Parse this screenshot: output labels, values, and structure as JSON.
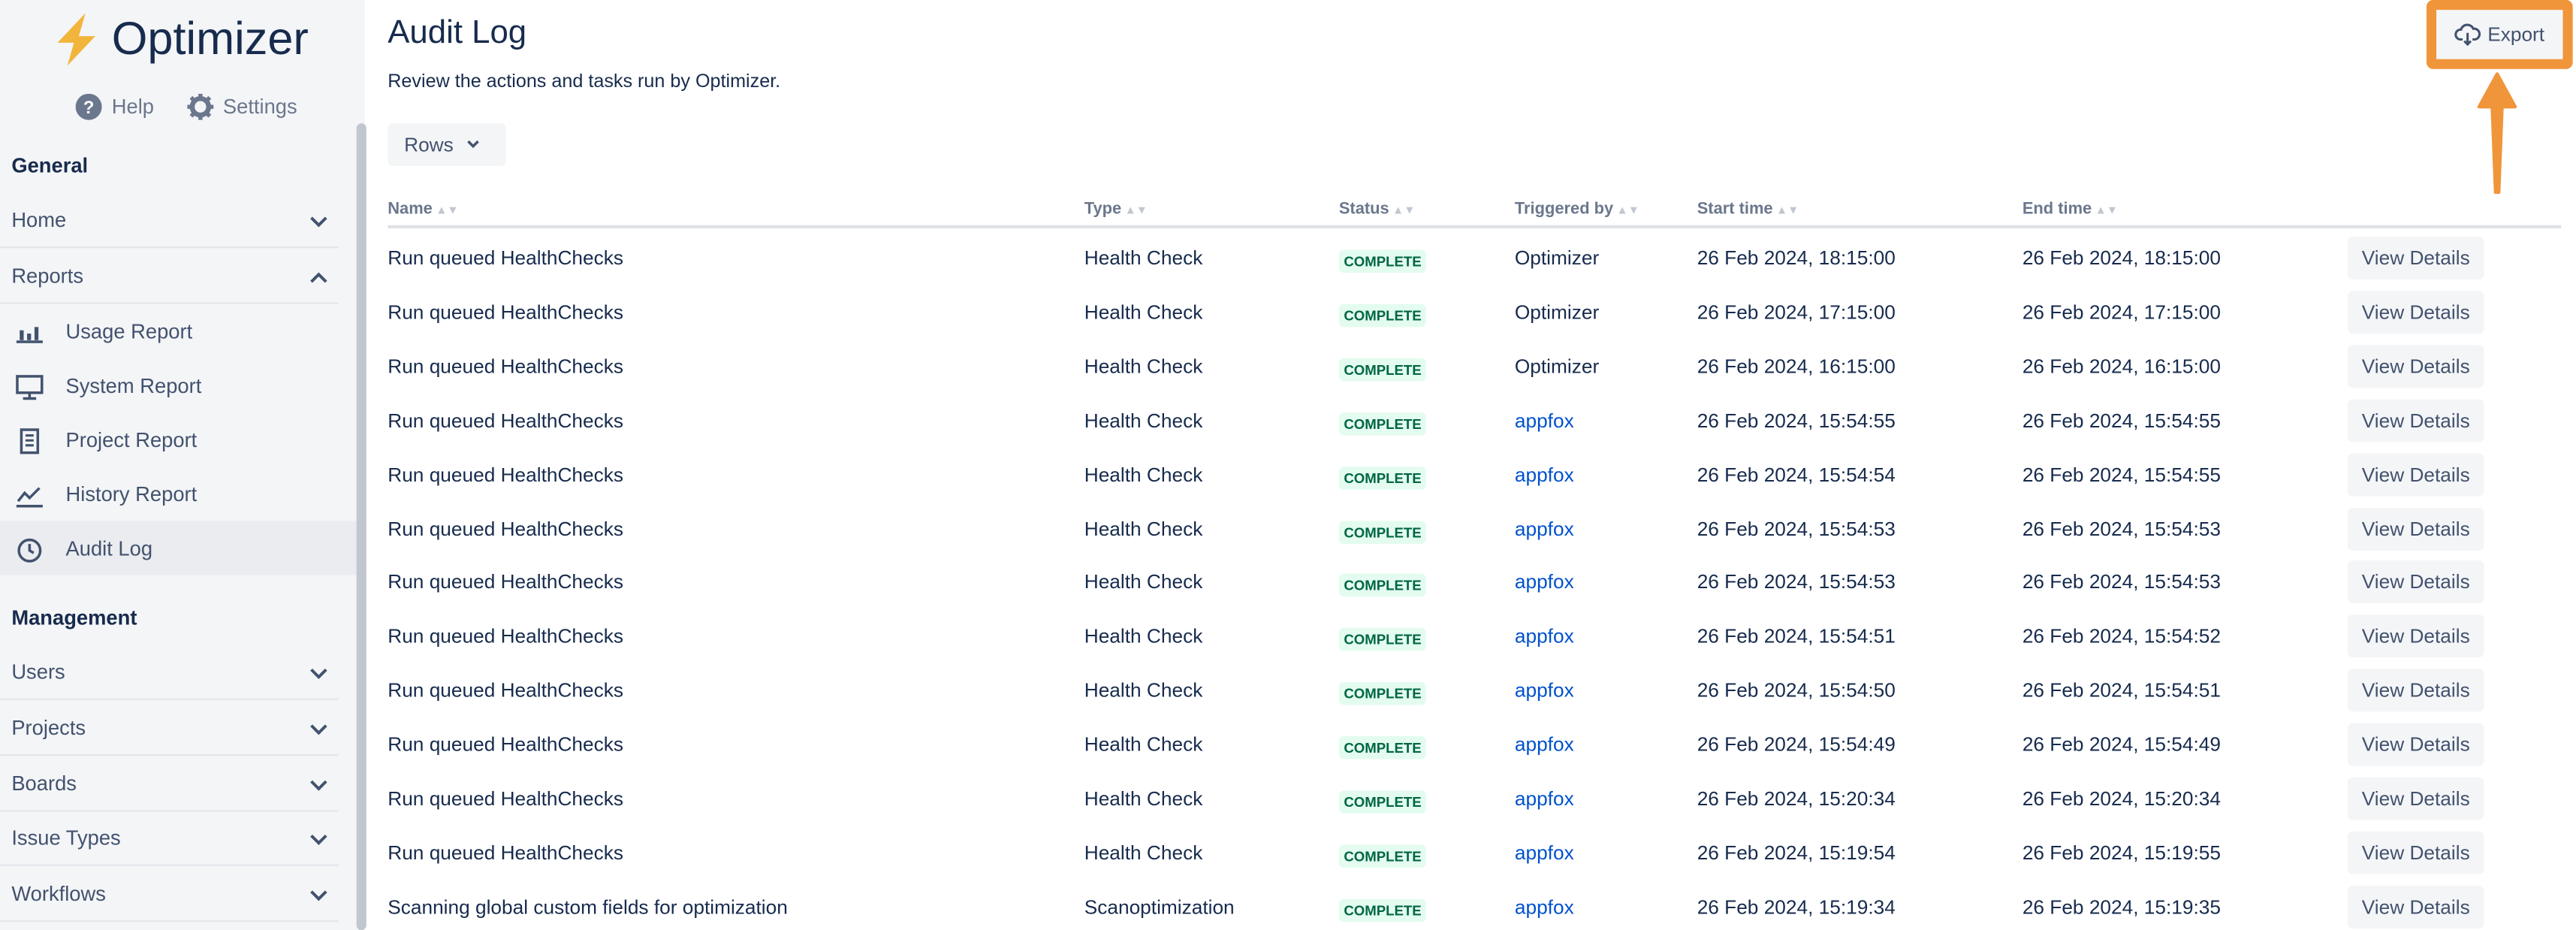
{
  "brand": {
    "name": "Optimizer",
    "accent": "#f0953a",
    "logo_icon": "lightning-bolt"
  },
  "sidebar": {
    "help": "Help",
    "settings": "Settings",
    "general": "General",
    "management": "Management",
    "general_items": [
      {
        "label": "Home",
        "state": "collapsed"
      },
      {
        "label": "Reports",
        "state": "expanded"
      }
    ],
    "reports": [
      {
        "label": "Usage Report",
        "icon": "bar-chart"
      },
      {
        "label": "System Report",
        "icon": "monitor"
      },
      {
        "label": "Project Report",
        "icon": "document"
      },
      {
        "label": "History Report",
        "icon": "line-chart"
      },
      {
        "label": "Audit Log",
        "icon": "clock",
        "active": true
      }
    ],
    "management_items": [
      {
        "label": "Users"
      },
      {
        "label": "Projects"
      },
      {
        "label": "Boards"
      },
      {
        "label": "Issue Types"
      },
      {
        "label": "Workflows"
      }
    ]
  },
  "page": {
    "title": "Audit Log",
    "subtitle": "Review the actions and tasks run by Optimizer.",
    "rows_label": "Rows",
    "export_label": "Export"
  },
  "table": {
    "headers": [
      "Name",
      "Type",
      "Status",
      "Triggered by",
      "Start time",
      "End time"
    ],
    "action_label": "View Details",
    "rows": [
      [
        "Run queued HealthChecks",
        "Health Check",
        "COMPLETE",
        "Optimizer",
        "26 Feb 2024, 18:15:00",
        "26 Feb 2024, 18:15:00"
      ],
      [
        "Run queued HealthChecks",
        "Health Check",
        "COMPLETE",
        "Optimizer",
        "26 Feb 2024, 17:15:00",
        "26 Feb 2024, 17:15:00"
      ],
      [
        "Run queued HealthChecks",
        "Health Check",
        "COMPLETE",
        "Optimizer",
        "26 Feb 2024, 16:15:00",
        "26 Feb 2024, 16:15:00"
      ],
      [
        "Run queued HealthChecks",
        "Health Check",
        "COMPLETE",
        "appfox",
        "26 Feb 2024, 15:54:55",
        "26 Feb 2024, 15:54:55"
      ],
      [
        "Run queued HealthChecks",
        "Health Check",
        "COMPLETE",
        "appfox",
        "26 Feb 2024, 15:54:54",
        "26 Feb 2024, 15:54:55"
      ],
      [
        "Run queued HealthChecks",
        "Health Check",
        "COMPLETE",
        "appfox",
        "26 Feb 2024, 15:54:53",
        "26 Feb 2024, 15:54:53"
      ],
      [
        "Run queued HealthChecks",
        "Health Check",
        "COMPLETE",
        "appfox",
        "26 Feb 2024, 15:54:53",
        "26 Feb 2024, 15:54:53"
      ],
      [
        "Run queued HealthChecks",
        "Health Check",
        "COMPLETE",
        "appfox",
        "26 Feb 2024, 15:54:51",
        "26 Feb 2024, 15:54:52"
      ],
      [
        "Run queued HealthChecks",
        "Health Check",
        "COMPLETE",
        "appfox",
        "26 Feb 2024, 15:54:50",
        "26 Feb 2024, 15:54:51"
      ],
      [
        "Run queued HealthChecks",
        "Health Check",
        "COMPLETE",
        "appfox",
        "26 Feb 2024, 15:54:49",
        "26 Feb 2024, 15:54:49"
      ],
      [
        "Run queued HealthChecks",
        "Health Check",
        "COMPLETE",
        "appfox",
        "26 Feb 2024, 15:20:34",
        "26 Feb 2024, 15:20:34"
      ],
      [
        "Run queued HealthChecks",
        "Health Check",
        "COMPLETE",
        "appfox",
        "26 Feb 2024, 15:19:54",
        "26 Feb 2024, 15:19:55"
      ],
      [
        "Scanning global custom fields for optimization",
        "Scanoptimization",
        "COMPLETE",
        "appfox",
        "26 Feb 2024, 15:19:34",
        "26 Feb 2024, 15:19:35"
      ]
    ]
  }
}
